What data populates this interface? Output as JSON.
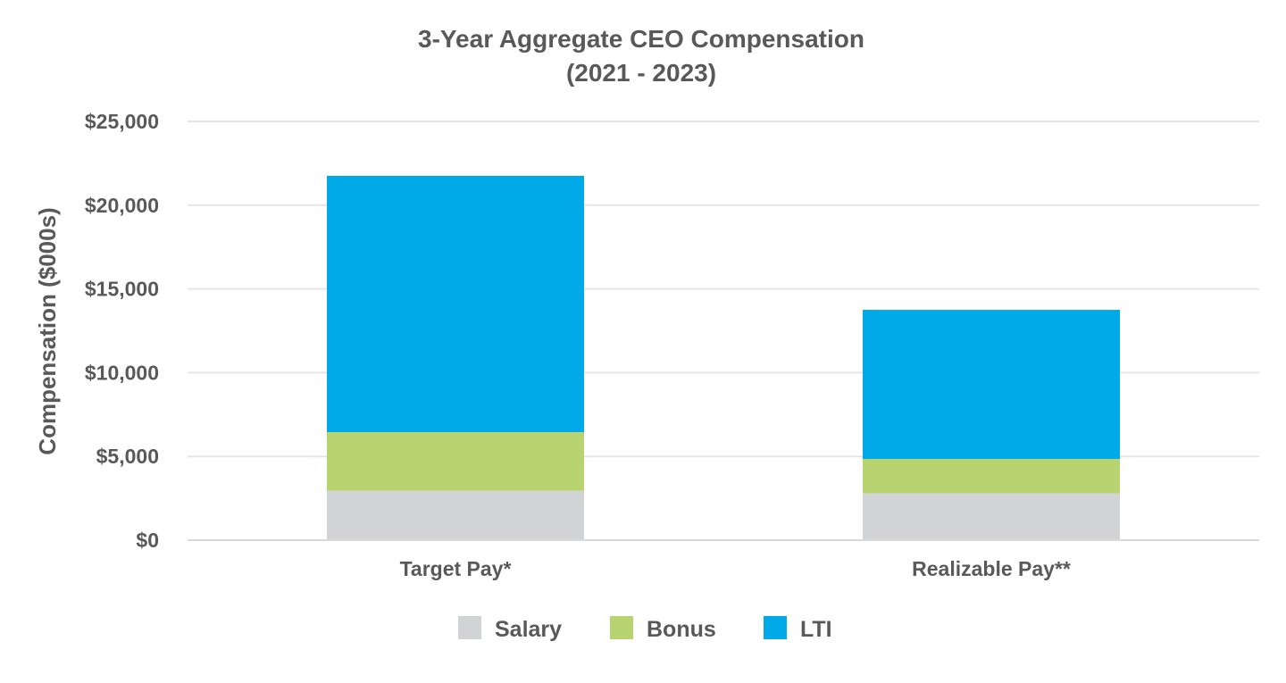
{
  "chart_data": {
    "type": "bar",
    "stacked": true,
    "title": "3-Year Aggregate CEO Compensation",
    "subtitle": "(2021 - 2023)",
    "xlabel": "",
    "ylabel": "Compensation ($000s)",
    "categories": [
      "Target Pay*",
      "Realizable Pay**"
    ],
    "series": [
      {
        "name": "Salary",
        "color": "#d2d3d5",
        "values": [
          2950,
          2800
        ]
      },
      {
        "name": "Bonus",
        "color": "#b8d471",
        "values": [
          3500,
          2050
        ]
      },
      {
        "name": "LTI",
        "color": "#00aae9",
        "values": [
          15300,
          8900
        ]
      }
    ],
    "ylim": [
      0,
      25000
    ],
    "yticks": [
      0,
      5000,
      10000,
      15000,
      20000,
      25000
    ],
    "ytick_labels": [
      "$0",
      "$5,000",
      "$10,000",
      "$15,000",
      "$20,000",
      "$25,000"
    ],
    "grid": true,
    "legend_position": "bottom"
  }
}
